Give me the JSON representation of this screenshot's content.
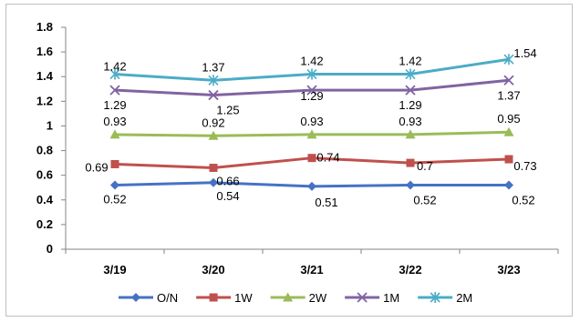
{
  "chart_data": {
    "type": "line",
    "categories": [
      "3/19",
      "3/20",
      "3/21",
      "3/22",
      "3/23"
    ],
    "ylim": [
      0,
      1.8
    ],
    "yticks": [
      "0",
      "0.2",
      "0.4",
      "0.6",
      "0.8",
      "1",
      "1.2",
      "1.4",
      "1.6",
      "1.8"
    ],
    "grid": false,
    "legend_position": "bottom",
    "series": [
      {
        "name": "O/N",
        "color": "#4572c4",
        "marker": "diamond",
        "values": [
          0.52,
          0.54,
          0.51,
          0.52,
          0.52
        ],
        "labels": [
          "0.52",
          "0.54",
          "0.51",
          "0.52",
          "0.52"
        ]
      },
      {
        "name": "1W",
        "color": "#c0504d",
        "marker": "square",
        "values": [
          0.69,
          0.66,
          0.74,
          0.7,
          0.73
        ],
        "labels": [
          "0.69",
          "0.66",
          "0.74",
          "0.7",
          "0.73"
        ]
      },
      {
        "name": "2W",
        "color": "#9bbb59",
        "marker": "triangle",
        "values": [
          0.93,
          0.92,
          0.93,
          0.93,
          0.95
        ],
        "labels": [
          "0.93",
          "0.92",
          "0.93",
          "0.93",
          "0.95"
        ]
      },
      {
        "name": "1M",
        "color": "#8064a2",
        "marker": "x",
        "values": [
          1.29,
          1.25,
          1.29,
          1.29,
          1.37
        ],
        "labels": [
          "1.29",
          "1.25",
          "1.29",
          "1.29",
          "1.37"
        ]
      },
      {
        "name": "2M",
        "color": "#4bacc6",
        "marker": "star",
        "values": [
          1.42,
          1.37,
          1.42,
          1.42,
          1.54
        ],
        "labels": [
          "1.42",
          "1.37",
          "1.42",
          "1.42",
          "1.54"
        ]
      }
    ]
  }
}
